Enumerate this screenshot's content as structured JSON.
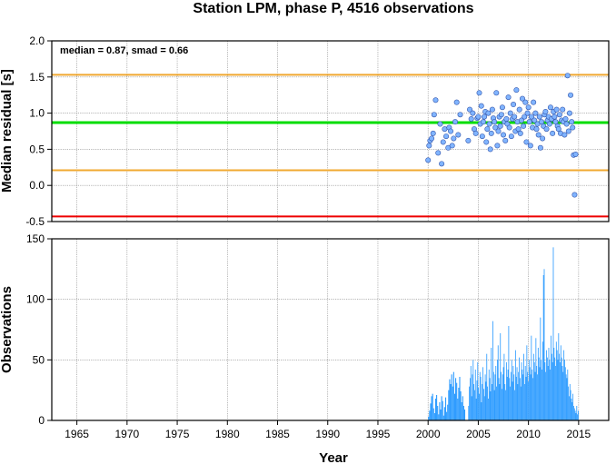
{
  "colors": {
    "median_line": "#00dd00",
    "smad_lines": "#f0a830",
    "red_line": "#ee0000",
    "points": "#80b4ff",
    "bars": "#2e9cff"
  },
  "chart_data": [
    {
      "type": "scatter",
      "title": "Station LPM, phase P, 4516 observations",
      "ylabel": "Median residual [s]",
      "annotation": "median = 0.87, smad = 0.66",
      "xlim": [
        1962.5,
        2018
      ],
      "ylim": [
        -0.5,
        2.0
      ],
      "yticks": [
        "2.0",
        "1.5",
        "1.0",
        "0.5",
        "0.0",
        "-0.5"
      ],
      "hlines": {
        "median": 0.87,
        "upper": 1.53,
        "lower": 0.21,
        "red": -0.43
      },
      "grid": true,
      "x": [
        2000.0,
        2000.1,
        2000.2,
        2000.35,
        2000.5,
        2000.6,
        2000.75,
        2001.0,
        2001.2,
        2001.35,
        2001.5,
        2001.65,
        2001.8,
        2002.0,
        2002.1,
        2002.25,
        2002.4,
        2002.55,
        2002.7,
        2002.85,
        2003.0,
        2003.2,
        2004.0,
        2004.15,
        2004.3,
        2004.45,
        2004.6,
        2004.75,
        2004.9,
        2005.0,
        2005.1,
        2005.2,
        2005.3,
        2005.4,
        2005.5,
        2005.6,
        2005.7,
        2005.8,
        2005.9,
        2006.0,
        2006.1,
        2006.2,
        2006.3,
        2006.4,
        2006.5,
        2006.6,
        2006.7,
        2006.8,
        2006.9,
        2007.0,
        2007.1,
        2007.2,
        2007.3,
        2007.4,
        2007.5,
        2007.6,
        2007.7,
        2007.8,
        2007.9,
        2008.0,
        2008.1,
        2008.2,
        2008.3,
        2008.4,
        2008.5,
        2008.6,
        2008.7,
        2008.8,
        2008.9,
        2009.0,
        2009.1,
        2009.2,
        2009.3,
        2009.4,
        2009.5,
        2009.6,
        2009.7,
        2009.8,
        2009.9,
        2010.0,
        2010.1,
        2010.2,
        2010.3,
        2010.4,
        2010.5,
        2010.6,
        2010.7,
        2010.8,
        2010.9,
        2011.0,
        2011.1,
        2011.2,
        2011.3,
        2011.4,
        2011.5,
        2011.6,
        2011.7,
        2011.8,
        2011.9,
        2012.0,
        2012.1,
        2012.2,
        2012.3,
        2012.4,
        2012.5,
        2012.6,
        2012.7,
        2012.8,
        2012.9,
        2013.0,
        2013.1,
        2013.2,
        2013.3,
        2013.4,
        2013.5,
        2013.6,
        2013.7,
        2013.8,
        2013.9,
        2014.0,
        2014.1,
        2014.2,
        2014.3,
        2014.4,
        2014.5,
        2014.6,
        2014.7
      ],
      "y": [
        0.35,
        0.55,
        0.62,
        0.65,
        0.72,
        0.98,
        1.18,
        0.45,
        0.85,
        0.3,
        0.6,
        0.78,
        0.68,
        0.52,
        0.8,
        0.75,
        0.55,
        0.65,
        0.88,
        1.15,
        0.7,
        0.98,
        0.62,
        1.05,
        0.92,
        1.0,
        0.78,
        0.72,
        0.93,
        0.95,
        1.28,
        0.85,
        1.1,
        0.68,
        0.88,
        0.95,
        1.02,
        0.6,
        0.78,
        1.0,
        0.85,
        0.5,
        0.72,
        1.05,
        0.93,
        0.88,
        0.8,
        1.28,
        0.55,
        0.75,
        0.95,
        0.82,
        0.98,
        1.08,
        0.7,
        0.88,
        0.62,
        0.92,
        0.85,
        1.22,
        0.8,
        1.0,
        0.68,
        0.92,
        1.12,
        0.95,
        0.75,
        1.32,
        0.88,
        0.78,
        1.05,
        0.72,
        0.9,
        1.2,
        0.82,
        0.95,
        1.15,
        0.6,
        1.0,
        1.08,
        0.88,
        0.55,
        0.95,
        0.8,
        1.15,
        0.9,
        1.0,
        0.78,
        0.85,
        0.7,
        0.95,
        0.52,
        0.88,
        0.65,
        0.82,
        0.98,
        1.02,
        0.78,
        0.9,
        0.95,
        0.85,
        1.08,
        0.92,
        0.72,
        1.02,
        0.95,
        0.88,
        1.05,
        0.82,
        0.78,
        0.98,
        0.72,
        0.9,
        1.05,
        0.88,
        0.7,
        0.92,
        0.85,
        1.52,
        0.75,
        1.0,
        1.25,
        0.88,
        0.8,
        0.42,
        -0.13,
        0.43
      ]
    },
    {
      "type": "bar",
      "xlabel": "Year",
      "ylabel": "Observations",
      "xlim": [
        1962.5,
        2018
      ],
      "ylim": [
        0,
        150
      ],
      "yticks": [
        "0",
        "50",
        "100",
        "150"
      ],
      "xticks": [
        "1965",
        "1970",
        "1975",
        "1980",
        "1985",
        "1990",
        "1995",
        "2000",
        "2005",
        "2010",
        "2015"
      ],
      "grid": true,
      "segments": [
        {
          "start": 2000.0,
          "end": 2002.0,
          "values": [
            3,
            8,
            14,
            20,
            22,
            10,
            6,
            18,
            21,
            12,
            5,
            15,
            9,
            20,
            16,
            4,
            11,
            19,
            7,
            13
          ]
        },
        {
          "start": 2002.0,
          "end": 2003.7,
          "values": [
            25,
            34,
            30,
            38,
            28,
            40,
            22,
            35,
            31,
            18,
            27,
            36,
            24,
            15,
            20,
            12,
            9
          ]
        },
        {
          "start": 2004.0,
          "end": 2015.0,
          "values": [
            12,
            28,
            35,
            45,
            20,
            38,
            50,
            30,
            25,
            42,
            18,
            33,
            48,
            27,
            22,
            40,
            36,
            15,
            30,
            44,
            26,
            20,
            38,
            32,
            55,
            28,
            18,
            42,
            35,
            24,
            60,
            30,
            82,
            40,
            25,
            38,
            45,
            28,
            50,
            62,
            35,
            30,
            72,
            40,
            26,
            38,
            44,
            55,
            30,
            25,
            48,
            36,
            42,
            78,
            35,
            28,
            40,
            50,
            32,
            45,
            38,
            25,
            58,
            36,
            44,
            30,
            40,
            52,
            35,
            28,
            48,
            42,
            38,
            55,
            30,
            45,
            36,
            62,
            40,
            32,
            50,
            44,
            38,
            70,
            42,
            35,
            55,
            48,
            40,
            68,
            45,
            38,
            60,
            52,
            44,
            85,
            50,
            42,
            65,
            120,
            125,
            48,
            40,
            58,
            52,
            45,
            60,
            50,
            42,
            70,
            55,
            48,
            143,
            60,
            52,
            45,
            65,
            58,
            50,
            72,
            55,
            48,
            62,
            52,
            45,
            40,
            58,
            50,
            44,
            38,
            35,
            42,
            28,
            20,
            30,
            25,
            18,
            15,
            22,
            12,
            10,
            8,
            6,
            12,
            5,
            8
          ]
        }
      ]
    }
  ]
}
